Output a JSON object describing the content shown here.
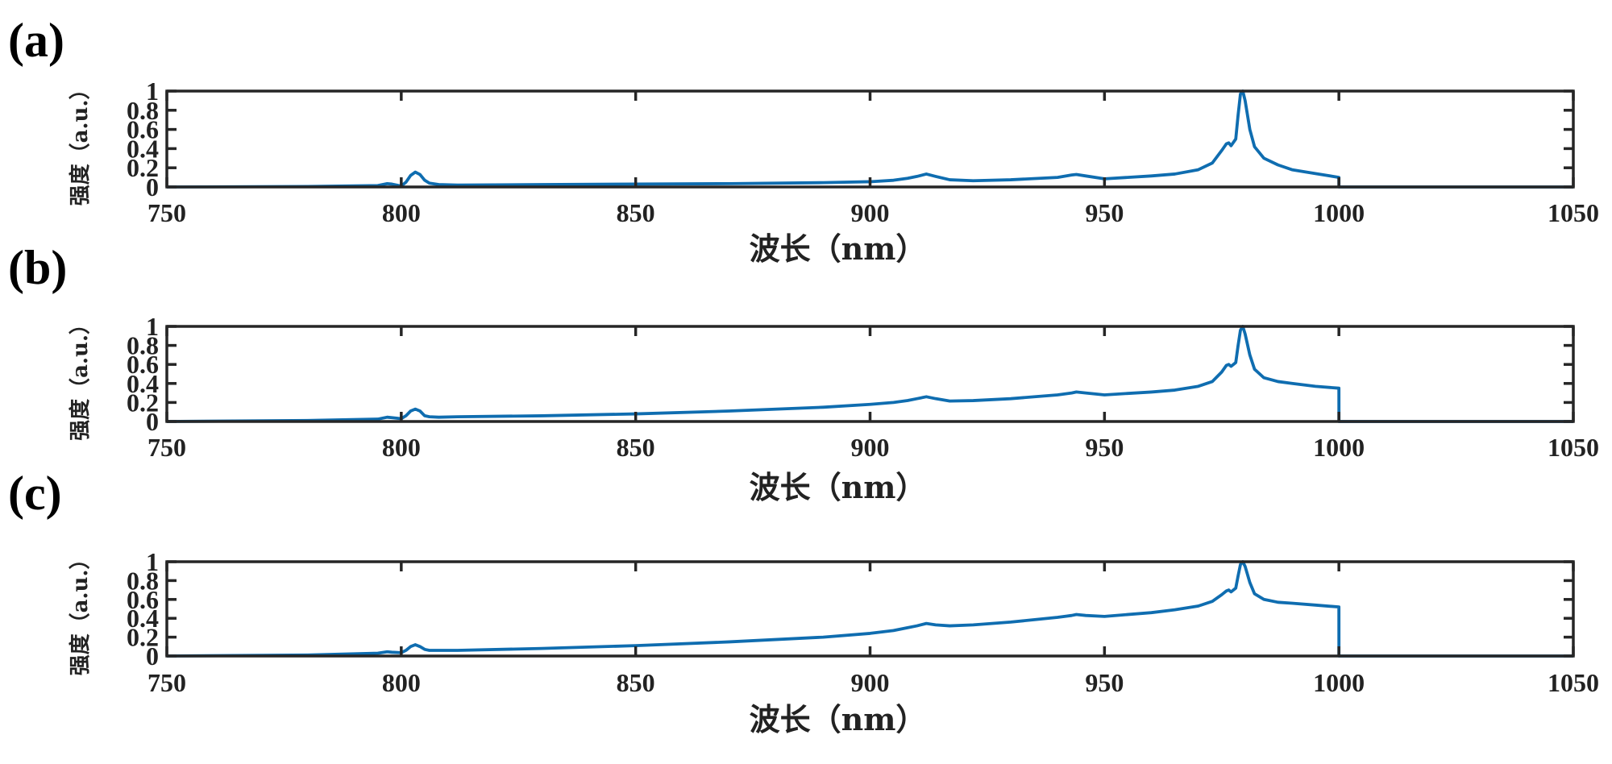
{
  "panels": [
    {
      "id": "a",
      "label": "(a)"
    },
    {
      "id": "b",
      "label": "(b)"
    },
    {
      "id": "c",
      "label": "(c)"
    }
  ],
  "series_color": "#0f6db0",
  "chart_data": [
    {
      "type": "line",
      "panel": "(a)",
      "xlabel": "波长（nm）",
      "ylabel": "强度（a.u.）",
      "xlim": [
        750,
        1050
      ],
      "ylim": [
        0,
        1
      ],
      "xticks": [
        750,
        800,
        850,
        900,
        950,
        1000,
        1050
      ],
      "yticks": [
        0,
        0.2,
        0.4,
        0.6,
        0.8,
        1
      ],
      "ytick_labels": [
        "0",
        "0.2",
        "0.4",
        "0.6",
        "0.8",
        "1"
      ],
      "grid": false,
      "series": [
        {
          "x": [
            750,
            780,
            795,
            797,
            798,
            800,
            801,
            802,
            803,
            804,
            805,
            806,
            808,
            812,
            830,
            850,
            870,
            890,
            900,
            905,
            908,
            910,
            912,
            914,
            917,
            922,
            930,
            940,
            943,
            944,
            946,
            950,
            960,
            965,
            970,
            973,
            975,
            976,
            976.5,
            977,
            978,
            978.5,
            979,
            979.5,
            980,
            981,
            982,
            984,
            987,
            990,
            995,
            1000,
            1000.01,
            1050
          ],
          "y": [
            0.0,
            0.005,
            0.015,
            0.035,
            0.03,
            0.01,
            0.05,
            0.12,
            0.155,
            0.13,
            0.07,
            0.04,
            0.025,
            0.02,
            0.025,
            0.03,
            0.035,
            0.045,
            0.055,
            0.07,
            0.09,
            0.11,
            0.135,
            0.11,
            0.075,
            0.065,
            0.075,
            0.1,
            0.125,
            0.13,
            0.115,
            0.085,
            0.115,
            0.135,
            0.18,
            0.25,
            0.38,
            0.45,
            0.46,
            0.43,
            0.5,
            0.75,
            0.97,
            1.0,
            0.9,
            0.6,
            0.42,
            0.3,
            0.23,
            0.18,
            0.14,
            0.1,
            0.0,
            0.0
          ]
        }
      ]
    },
    {
      "type": "line",
      "panel": "(b)",
      "xlabel": "波长（nm）",
      "ylabel": "强度（a.u.）",
      "xlim": [
        750,
        1050
      ],
      "ylim": [
        0,
        1
      ],
      "xticks": [
        750,
        800,
        850,
        900,
        950,
        1000,
        1050
      ],
      "yticks": [
        0,
        0.2,
        0.4,
        0.6,
        0.8,
        1
      ],
      "ytick_labels": [
        "0",
        "0.2",
        "0.4",
        "0.6",
        "0.8",
        "1"
      ],
      "grid": false,
      "series": [
        {
          "x": [
            750,
            780,
            795,
            797,
            798,
            800,
            801,
            802,
            803,
            804,
            805,
            806,
            808,
            812,
            830,
            850,
            870,
            890,
            900,
            905,
            908,
            910,
            912,
            914,
            917,
            922,
            930,
            940,
            943,
            944,
            946,
            950,
            960,
            965,
            970,
            973,
            975,
            976,
            976.5,
            977,
            978,
            978.5,
            979,
            979.5,
            980,
            981,
            982,
            984,
            987,
            990,
            995,
            1000,
            1000.01,
            1050
          ],
          "y": [
            0.0,
            0.01,
            0.025,
            0.045,
            0.04,
            0.03,
            0.06,
            0.11,
            0.13,
            0.11,
            0.06,
            0.05,
            0.045,
            0.05,
            0.06,
            0.08,
            0.11,
            0.15,
            0.18,
            0.2,
            0.22,
            0.24,
            0.26,
            0.24,
            0.215,
            0.22,
            0.24,
            0.28,
            0.3,
            0.31,
            0.3,
            0.28,
            0.31,
            0.33,
            0.37,
            0.42,
            0.52,
            0.59,
            0.6,
            0.58,
            0.62,
            0.8,
            0.96,
            1.0,
            0.92,
            0.7,
            0.55,
            0.46,
            0.42,
            0.4,
            0.37,
            0.35,
            0.0,
            0.0
          ]
        }
      ]
    },
    {
      "type": "line",
      "panel": "(c)",
      "xlabel": "波长（nm）",
      "ylabel": "强度（a.u.）",
      "xlim": [
        750,
        1050
      ],
      "ylim": [
        0,
        1
      ],
      "xticks": [
        750,
        800,
        850,
        900,
        950,
        1000,
        1050
      ],
      "yticks": [
        0,
        0.2,
        0.4,
        0.6,
        0.8,
        1
      ],
      "ytick_labels": [
        "0",
        "0.2",
        "0.4",
        "0.6",
        "0.8",
        "1"
      ],
      "grid": false,
      "series": [
        {
          "x": [
            750,
            780,
            795,
            797,
            798,
            800,
            801,
            802,
            803,
            804,
            805,
            806,
            808,
            812,
            830,
            850,
            870,
            890,
            900,
            905,
            908,
            910,
            912,
            914,
            917,
            922,
            930,
            940,
            943,
            944,
            946,
            950,
            960,
            965,
            970,
            973,
            975,
            976,
            976.5,
            977,
            978,
            978.5,
            979,
            979.5,
            980,
            981,
            982,
            984,
            987,
            990,
            995,
            1000,
            1000.01,
            1050
          ],
          "y": [
            0.0,
            0.01,
            0.03,
            0.045,
            0.04,
            0.035,
            0.06,
            0.1,
            0.12,
            0.1,
            0.07,
            0.06,
            0.06,
            0.06,
            0.08,
            0.11,
            0.15,
            0.2,
            0.24,
            0.27,
            0.3,
            0.32,
            0.345,
            0.33,
            0.32,
            0.33,
            0.36,
            0.41,
            0.43,
            0.44,
            0.43,
            0.42,
            0.46,
            0.49,
            0.53,
            0.58,
            0.65,
            0.69,
            0.7,
            0.68,
            0.72,
            0.85,
            0.97,
            1.0,
            0.95,
            0.78,
            0.66,
            0.6,
            0.57,
            0.56,
            0.54,
            0.52,
            0.0,
            0.0
          ]
        }
      ]
    }
  ]
}
